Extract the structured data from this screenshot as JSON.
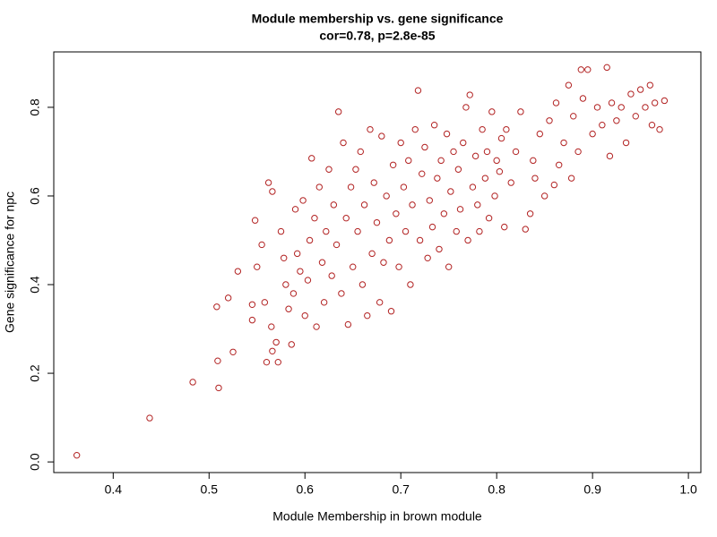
{
  "chart_data": {
    "type": "scatter",
    "title": "Module membership vs. gene significance",
    "subtitle": "cor=0.78, p=2.8e-85",
    "x_label": "Module Membership in brown module",
    "y_label": "Gene significance for npc",
    "color": "#b22222",
    "grid": false,
    "xlim": [
      0.338,
      1.013
    ],
    "ylim": [
      -0.024,
      0.925
    ],
    "xticks": [
      0.4,
      0.5,
      0.6,
      0.7,
      0.8,
      0.9,
      {
        "value": 1.0,
        "label": "1.0"
      }
    ],
    "yticks": [
      {
        "value": 0.0,
        "label": "0.0"
      },
      0.2,
      0.4,
      0.6,
      0.8
    ],
    "x": [
      0.362,
      0.438,
      0.483,
      0.51,
      0.509,
      0.525,
      0.508,
      0.52,
      0.53,
      0.545,
      0.545,
      0.55,
      0.548,
      0.555,
      0.558,
      0.56,
      0.566,
      0.565,
      0.562,
      0.566,
      0.57,
      0.572,
      0.575,
      0.578,
      0.58,
      0.583,
      0.586,
      0.588,
      0.59,
      0.592,
      0.595,
      0.598,
      0.6,
      0.603,
      0.605,
      0.607,
      0.61,
      0.612,
      0.615,
      0.618,
      0.62,
      0.622,
      0.625,
      0.628,
      0.63,
      0.633,
      0.635,
      0.638,
      0.64,
      0.643,
      0.645,
      0.648,
      0.65,
      0.653,
      0.655,
      0.658,
      0.66,
      0.662,
      0.665,
      0.668,
      0.67,
      0.672,
      0.675,
      0.678,
      0.68,
      0.682,
      0.685,
      0.688,
      0.69,
      0.692,
      0.695,
      0.698,
      0.7,
      0.703,
      0.705,
      0.708,
      0.71,
      0.712,
      0.715,
      0.718,
      0.72,
      0.722,
      0.725,
      0.728,
      0.73,
      0.733,
      0.735,
      0.738,
      0.74,
      0.742,
      0.745,
      0.748,
      0.75,
      0.752,
      0.755,
      0.758,
      0.76,
      0.762,
      0.765,
      0.768,
      0.77,
      0.772,
      0.775,
      0.778,
      0.78,
      0.782,
      0.785,
      0.788,
      0.79,
      0.792,
      0.795,
      0.798,
      0.8,
      0.803,
      0.805,
      0.808,
      0.81,
      0.815,
      0.82,
      0.825,
      0.83,
      0.835,
      0.838,
      0.84,
      0.845,
      0.85,
      0.855,
      0.86,
      0.862,
      0.865,
      0.87,
      0.875,
      0.878,
      0.88,
      0.885,
      0.888,
      0.89,
      0.895,
      0.9,
      0.905,
      0.91,
      0.915,
      0.918,
      0.92,
      0.925,
      0.93,
      0.935,
      0.94,
      0.945,
      0.95,
      0.955,
      0.96,
      0.962,
      0.965,
      0.97,
      0.975
    ],
    "y": [
      0.015,
      0.099,
      0.18,
      0.167,
      0.228,
      0.248,
      0.35,
      0.37,
      0.43,
      0.355,
      0.32,
      0.44,
      0.545,
      0.49,
      0.36,
      0.225,
      0.25,
      0.305,
      0.63,
      0.61,
      0.27,
      0.225,
      0.52,
      0.46,
      0.4,
      0.345,
      0.265,
      0.38,
      0.57,
      0.47,
      0.43,
      0.59,
      0.33,
      0.41,
      0.5,
      0.685,
      0.55,
      0.305,
      0.62,
      0.45,
      0.36,
      0.52,
      0.66,
      0.42,
      0.58,
      0.49,
      0.79,
      0.38,
      0.72,
      0.55,
      0.31,
      0.62,
      0.44,
      0.66,
      0.52,
      0.7,
      0.4,
      0.58,
      0.33,
      0.75,
      0.47,
      0.63,
      0.54,
      0.36,
      0.735,
      0.45,
      0.6,
      0.5,
      0.34,
      0.67,
      0.56,
      0.44,
      0.72,
      0.62,
      0.52,
      0.68,
      0.4,
      0.58,
      0.75,
      0.838,
      0.5,
      0.65,
      0.71,
      0.46,
      0.59,
      0.53,
      0.76,
      0.64,
      0.48,
      0.68,
      0.56,
      0.74,
      0.44,
      0.61,
      0.7,
      0.52,
      0.66,
      0.57,
      0.72,
      0.8,
      0.5,
      0.828,
      0.62,
      0.69,
      0.58,
      0.52,
      0.75,
      0.64,
      0.7,
      0.55,
      0.79,
      0.6,
      0.68,
      0.655,
      0.73,
      0.53,
      0.75,
      0.63,
      0.7,
      0.79,
      0.525,
      0.56,
      0.68,
      0.64,
      0.74,
      0.6,
      0.77,
      0.625,
      0.81,
      0.67,
      0.72,
      0.85,
      0.64,
      0.78,
      0.7,
      0.885,
      0.82,
      0.885,
      0.74,
      0.8,
      0.76,
      0.89,
      0.69,
      0.81,
      0.77,
      0.8,
      0.72,
      0.83,
      0.78,
      0.84,
      0.8,
      0.85,
      0.76,
      0.81,
      0.75,
      0.815
    ]
  }
}
